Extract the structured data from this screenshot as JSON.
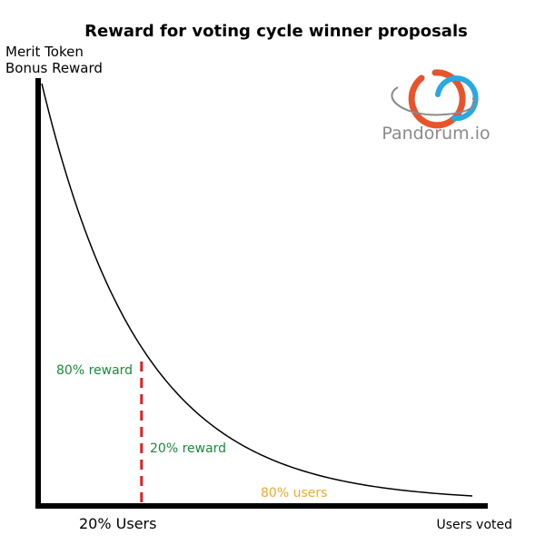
{
  "chart_data": {
    "type": "line",
    "title": "Reward for voting cycle winner proposals",
    "ylabel_lines": [
      "Merit Token",
      "Bonus Reward"
    ],
    "x_label_left": "20% Users",
    "x_label_right": "Users voted",
    "grid": false,
    "legend": "none",
    "series": [
      {
        "curve": "exponential-decay",
        "decay": 4.3,
        "color": "#000000"
      }
    ],
    "split": {
      "x_fraction": 0.2,
      "color": "#e02020",
      "style": "dashed"
    },
    "annotations": [
      {
        "text": "80% reward",
        "color": "#1a8a3a"
      },
      {
        "text": "20% reward",
        "color": "#1a8a3a"
      },
      {
        "text": "80% users",
        "color": "#f0a830"
      }
    ]
  },
  "logo": {
    "text": "Pandorum.io",
    "colors": {
      "orange": "#e8542a",
      "blue": "#2aa8e0",
      "gray": "#8a8a8a"
    }
  }
}
